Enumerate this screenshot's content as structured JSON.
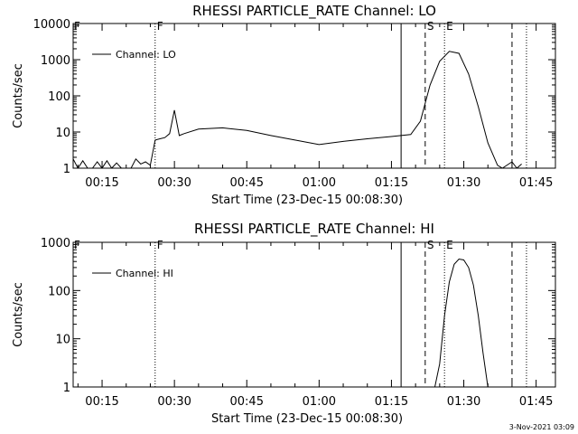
{
  "footer": {
    "timestamp": "3-Nov-2021 03:09"
  },
  "chart_data": [
    {
      "type": "line",
      "title": "RHESSI PARTICLE_RATE Channel: LO",
      "xlabel": "Start Time (23-Dec-15 00:08:30)",
      "ylabel": "Counts/sec",
      "y_scale": "log",
      "xlim": [
        "00:09:00",
        "01:49:00"
      ],
      "ylim": [
        1,
        10000
      ],
      "x_tick_labels": [
        "00:15",
        "00:30",
        "00:45",
        "01:00",
        "01:15",
        "01:30",
        "01:45"
      ],
      "y_tick_labels": [
        "1",
        "10",
        "100",
        "1000",
        "10000"
      ],
      "legend": {
        "position": "top-left",
        "entries": [
          "Channel: LO"
        ]
      },
      "markers": [
        {
          "label": "F",
          "time": "00:26:00",
          "style": "dotted"
        },
        {
          "label": "",
          "time": "01:17:00",
          "style": "solid"
        },
        {
          "label": "S",
          "time": "01:22:00",
          "style": "dashed"
        },
        {
          "label": "E",
          "time": "01:26:00",
          "style": "dotted"
        },
        {
          "label": "",
          "time": "01:40:00",
          "style": "dashed"
        },
        {
          "label": "",
          "time": "01:43:00",
          "style": "dotted"
        }
      ],
      "series": [
        {
          "name": "Channel: LO",
          "x": [
            "00:09:00",
            "00:10:00",
            "00:11:00",
            "00:12:00",
            "00:13:00",
            "00:14:00",
            "00:15:00",
            "00:16:00",
            "00:17:00",
            "00:18:00",
            "00:19:00",
            "00:20:00",
            "00:21:00",
            "00:22:00",
            "00:23:00",
            "00:24:00",
            "00:25:00",
            "00:26:00",
            "00:27:00",
            "00:28:00",
            "00:29:00",
            "00:30:00",
            "00:31:00",
            "00:32:00",
            "00:35:00",
            "00:40:00",
            "00:45:00",
            "00:50:00",
            "00:55:00",
            "01:00:00",
            "01:05:00",
            "01:10:00",
            "01:15:00",
            "01:17:00",
            "01:19:00",
            "01:21:00",
            "01:23:00",
            "01:25:00",
            "01:27:00",
            "01:29:00",
            "01:31:00",
            "01:33:00",
            "01:35:00",
            "01:37:00",
            "01:38:00",
            "01:40:00",
            "01:41:00",
            "01:42:00"
          ],
          "y": [
            1.8,
            1,
            1.6,
            1,
            1,
            1.5,
            1,
            1.6,
            1,
            1.4,
            1,
            1,
            1,
            1.8,
            1.3,
            1.5,
            1.2,
            6,
            6.5,
            7,
            9,
            40,
            8,
            9,
            12,
            13,
            11,
            8,
            6,
            4.5,
            5.5,
            6.5,
            7.5,
            8,
            8.5,
            20,
            200,
            900,
            1700,
            1500,
            400,
            50,
            5,
            1.2,
            1,
            1.5,
            1,
            1.3
          ]
        }
      ]
    },
    {
      "type": "line",
      "title": "RHESSI PARTICLE_RATE Channel: HI",
      "xlabel": "Start Time (23-Dec-15 00:08:30)",
      "ylabel": "Counts/sec",
      "y_scale": "log",
      "xlim": [
        "00:09:00",
        "01:49:00"
      ],
      "ylim": [
        1,
        1000
      ],
      "x_tick_labels": [
        "00:15",
        "00:30",
        "00:45",
        "01:00",
        "01:15",
        "01:30",
        "01:45"
      ],
      "y_tick_labels": [
        "1",
        "10",
        "100",
        "1000"
      ],
      "legend": {
        "position": "top-left",
        "entries": [
          "Channel: HI"
        ]
      },
      "markers": [
        {
          "label": "F",
          "time": "00:26:00",
          "style": "dotted"
        },
        {
          "label": "",
          "time": "01:17:00",
          "style": "solid"
        },
        {
          "label": "S",
          "time": "01:22:00",
          "style": "dashed"
        },
        {
          "label": "E",
          "time": "01:26:00",
          "style": "dotted"
        },
        {
          "label": "",
          "time": "01:40:00",
          "style": "dashed"
        },
        {
          "label": "",
          "time": "01:43:00",
          "style": "dotted"
        }
      ],
      "series": [
        {
          "name": "Channel: HI",
          "x": [
            "01:24:00",
            "01:25:00",
            "01:26:00",
            "01:27:00",
            "01:28:00",
            "01:29:00",
            "01:30:00",
            "01:31:00",
            "01:32:00",
            "01:33:00",
            "01:34:00",
            "01:35:00"
          ],
          "y": [
            1,
            3,
            30,
            150,
            350,
            450,
            430,
            300,
            130,
            30,
            5,
            1
          ]
        }
      ]
    }
  ]
}
